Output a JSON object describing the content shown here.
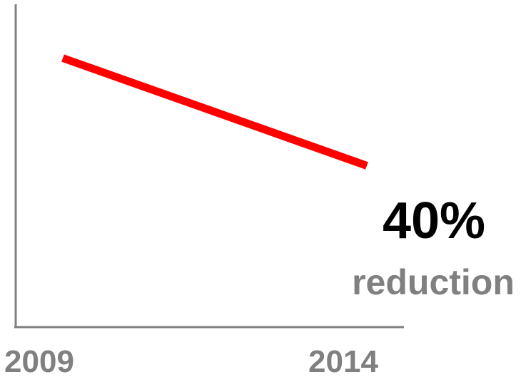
{
  "chart_data": {
    "type": "line",
    "title": "",
    "xlabel": "",
    "ylabel": "",
    "categories": [
      "2009",
      "2014"
    ],
    "series": [
      {
        "values": [
          100,
          60
        ],
        "color": "#ff0000"
      }
    ],
    "ylim": [
      0,
      120
    ],
    "grid": false,
    "annotation": {
      "value": "40%",
      "label": "reduction"
    }
  }
}
